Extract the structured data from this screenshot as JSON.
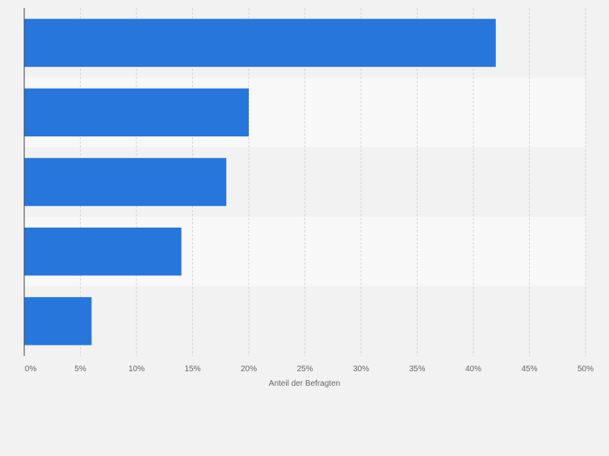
{
  "chart_data": {
    "type": "bar",
    "orientation": "horizontal",
    "categories": [
      "",
      "",
      "",
      "",
      ""
    ],
    "values": [
      42,
      20,
      18,
      14,
      6
    ],
    "xlabel": "Anteil der Befragten",
    "ylabel": "",
    "xlim": [
      0,
      50
    ],
    "tick_values": [
      0,
      5,
      10,
      15,
      20,
      25,
      30,
      35,
      40,
      45,
      50
    ],
    "tick_labels": [
      "0%",
      "5%",
      "10%",
      "15%",
      "20%",
      "25%",
      "30%",
      "35%",
      "40%",
      "45%",
      "50%"
    ],
    "grid": true,
    "legend": "none",
    "colors": {
      "bar": "#2776dc",
      "band_dark": "#f2f2f2",
      "band_light": "#f8f8f8",
      "grid": "#d6d6d6",
      "axis": "#444444",
      "text": "#666666"
    }
  }
}
